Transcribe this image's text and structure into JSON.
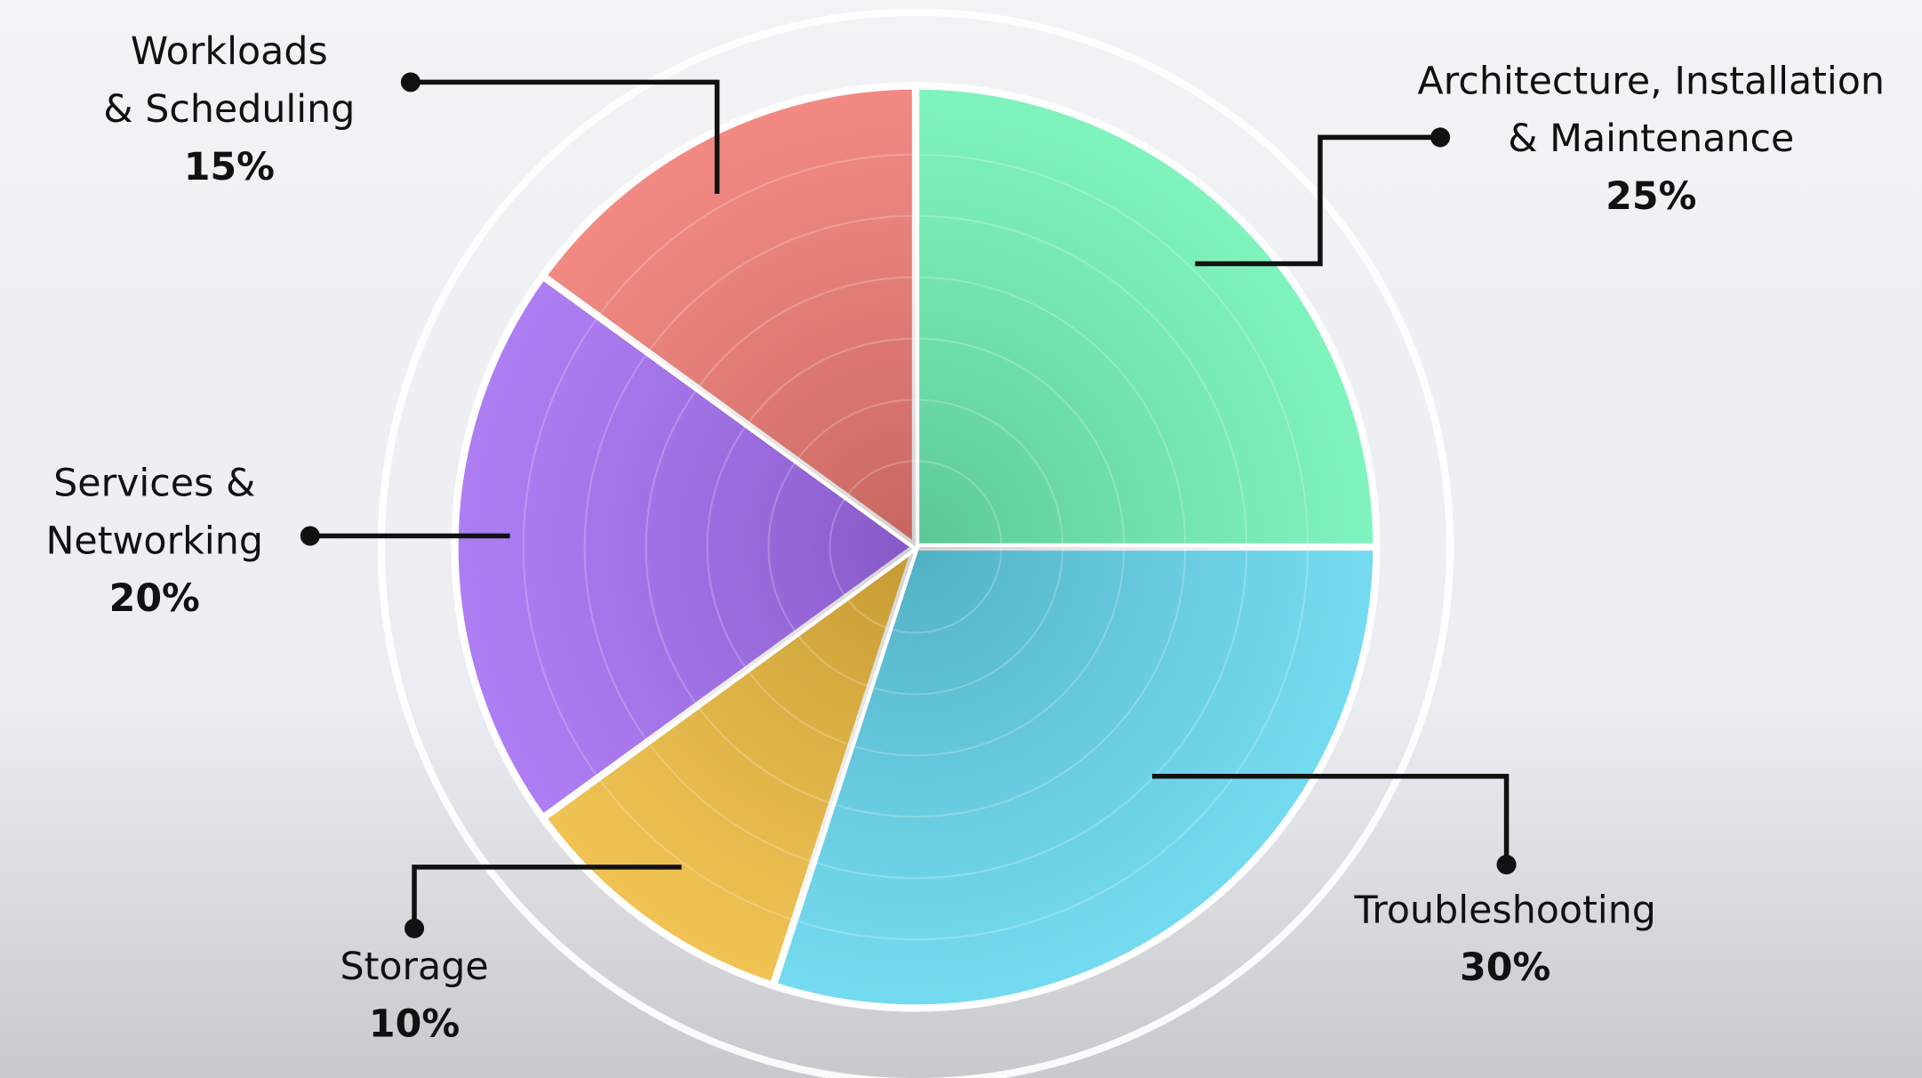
{
  "chart_data": {
    "type": "pie",
    "categories": [
      [
        "Architecture, Installation",
        "& Maintenance"
      ],
      [
        "Troubleshooting"
      ],
      [
        "Storage"
      ],
      [
        "Services &",
        "Networking"
      ],
      [
        "Workloads",
        "& Scheduling"
      ]
    ],
    "values": [
      25,
      30,
      10,
      20,
      15
    ],
    "value_labels": [
      "25%",
      "30%",
      "10%",
      "20%",
      "15%"
    ],
    "colors": [
      "#6ef2b4",
      "#62d6ee",
      "#eebb3c",
      "#a36cf2",
      "#f07a72"
    ]
  }
}
